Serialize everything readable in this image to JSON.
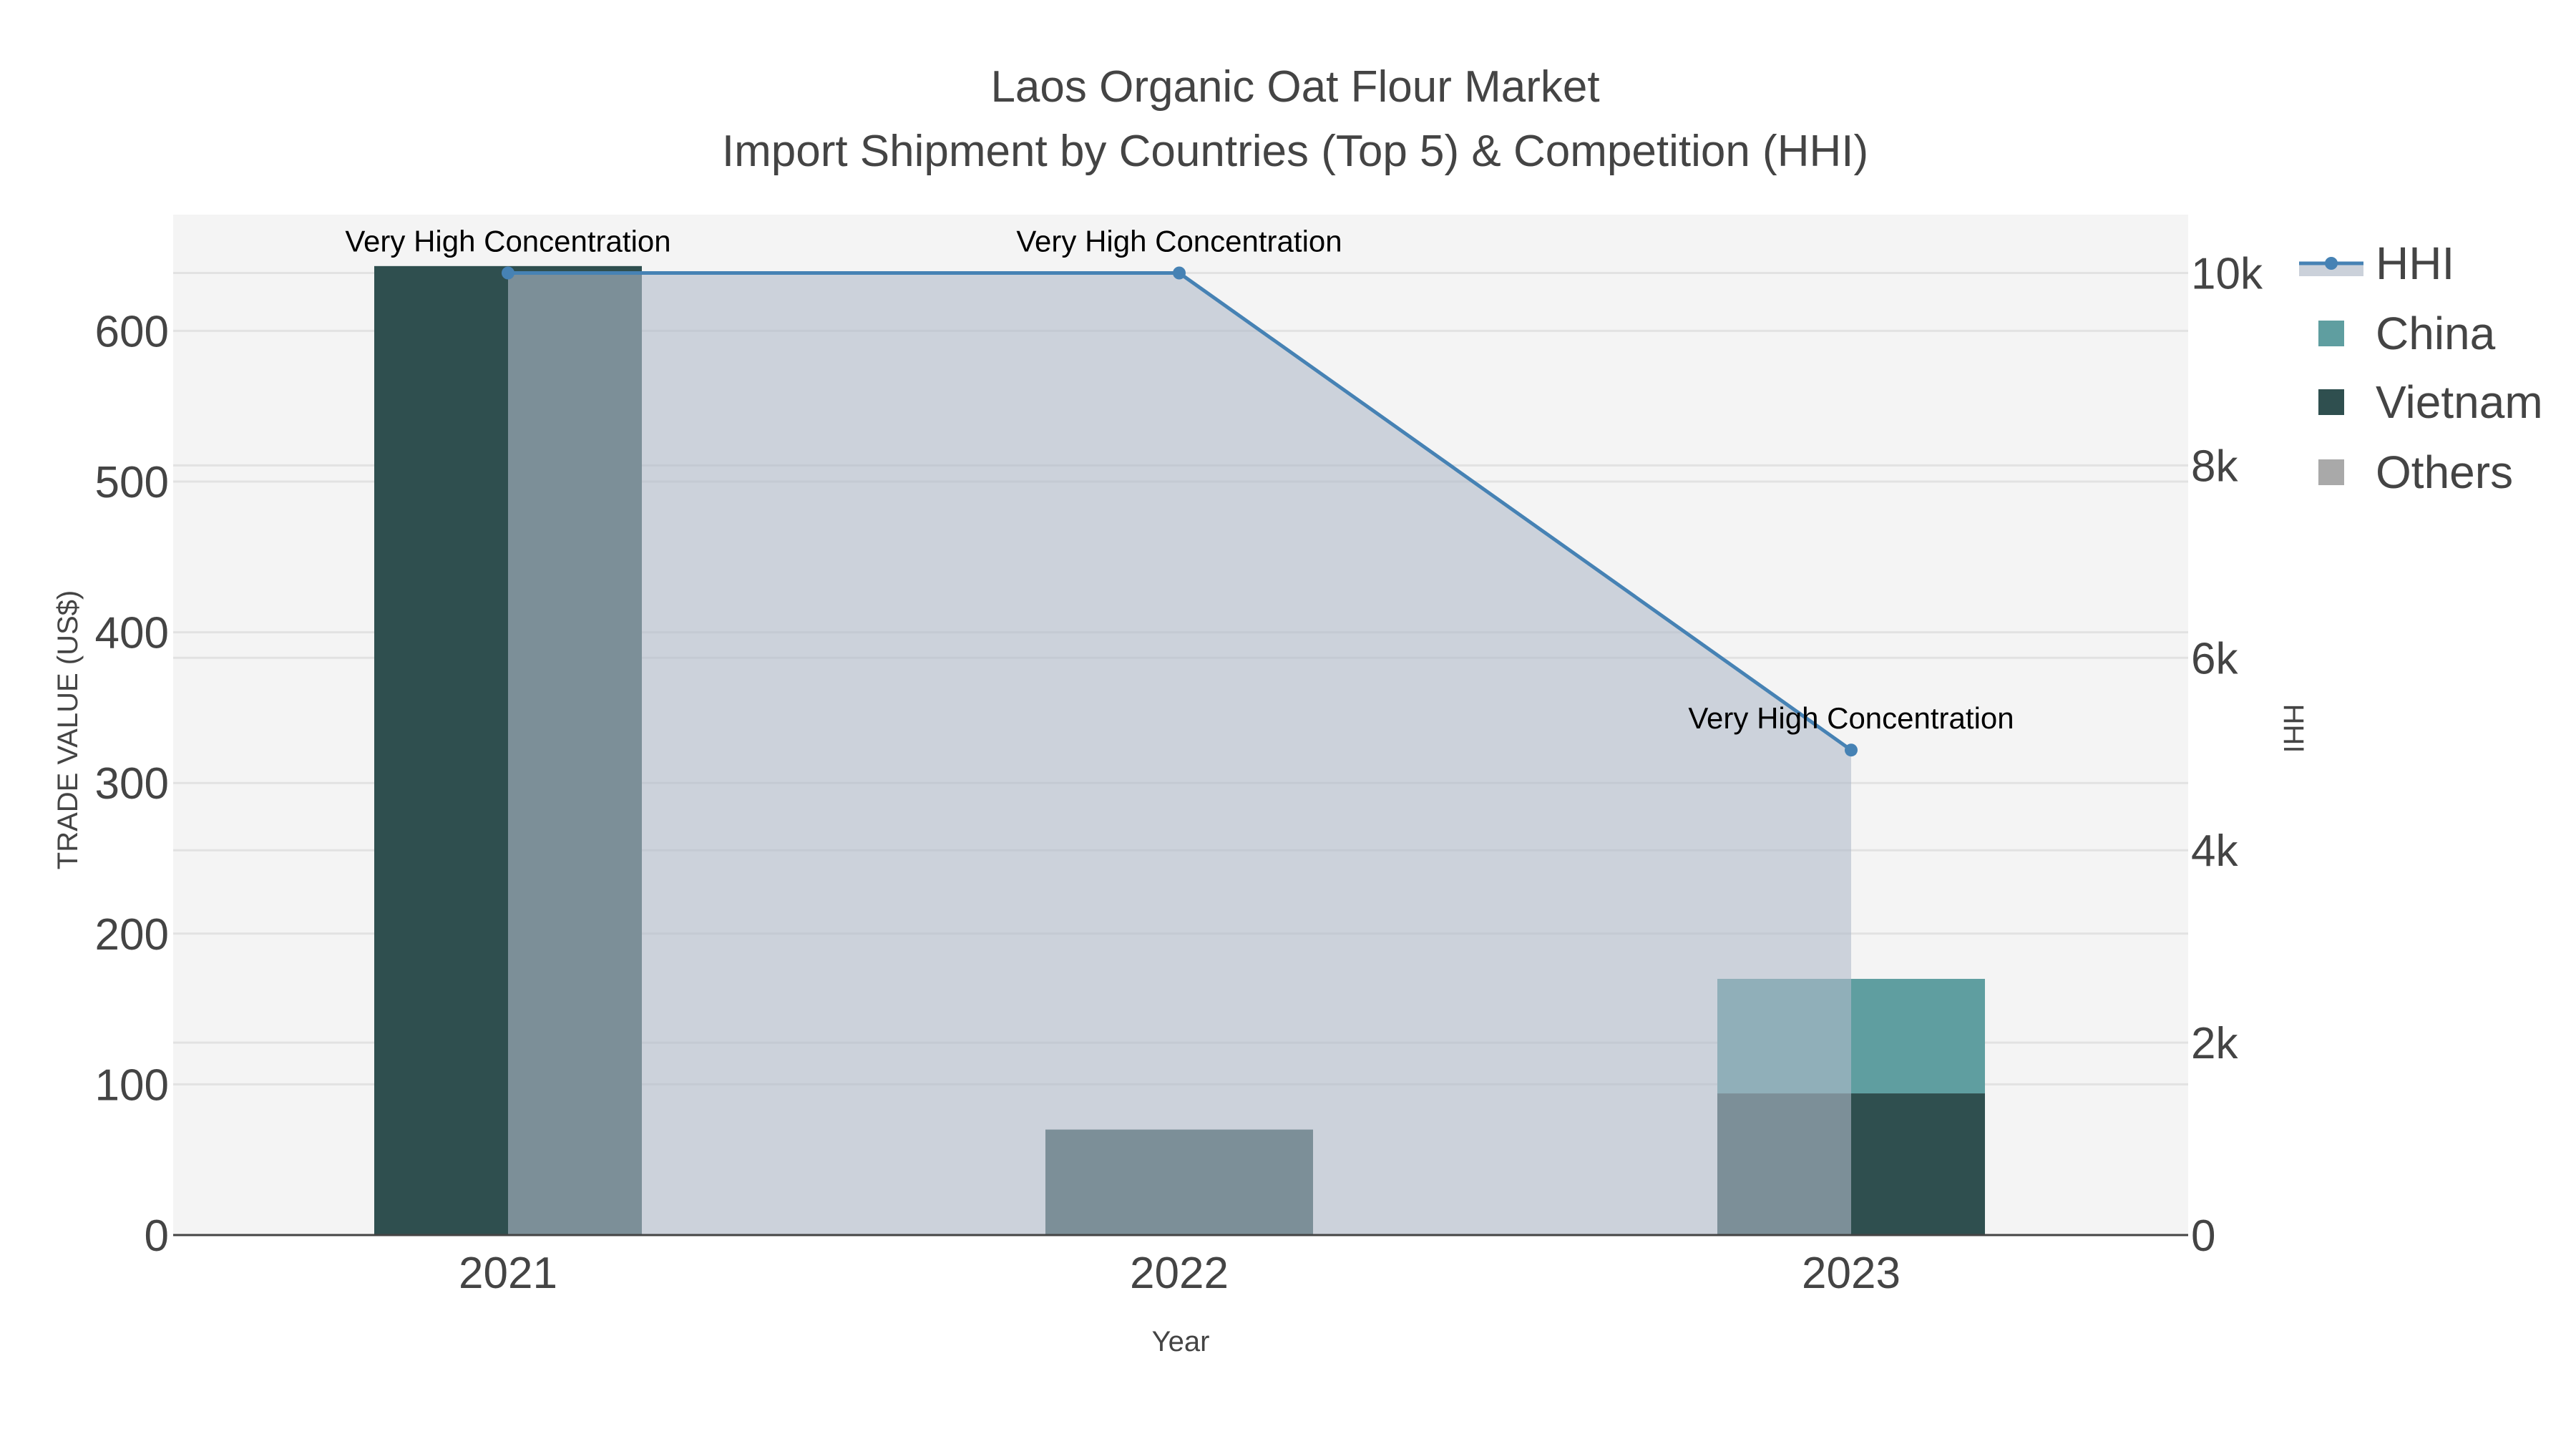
{
  "title": {
    "line1": "Laos Organic Oat Flour Market",
    "line2": "Import Shipment by Countries (Top 5) & Competition (HHI)"
  },
  "colors": {
    "plot_bg": "#f4f4f4",
    "grid": "#e2e2e2",
    "china": "#5f9ea0",
    "vietnam": "#2f4f4f",
    "others": "#a9a9a9",
    "hhi_line": "#4682b4",
    "hhi_fill": "rgba(176,186,201,0.6)",
    "axis_line": "#444444",
    "text": "#444444"
  },
  "legend": {
    "items": [
      {
        "name": "HHI",
        "type": "line"
      },
      {
        "name": "China",
        "type": "square",
        "color": "#5f9ea0"
      },
      {
        "name": "Vietnam",
        "type": "square",
        "color": "#2f4f4f"
      },
      {
        "name": "Others",
        "type": "square",
        "color": "#a9a9a9"
      }
    ]
  },
  "axes": {
    "x_title": "Year",
    "y_left_title": "TRADE VALUE (US$)",
    "y_right_title": "HHI",
    "x_ticks": [
      "2021",
      "2022",
      "2023"
    ],
    "y_left_ticks": [
      "0",
      "100",
      "200",
      "300",
      "400",
      "500",
      "600"
    ],
    "y_right_ticks": [
      "0",
      "2k",
      "4k",
      "6k",
      "8k",
      "10k"
    ]
  },
  "annotations": [
    {
      "year": "2021",
      "text": "Very High Concentration"
    },
    {
      "year": "2022",
      "text": "Very High Concentration"
    },
    {
      "year": "2023",
      "text": "Very High Concentration"
    }
  ],
  "chart_data": {
    "type": "bar",
    "title": "Laos Organic Oat Flour Market — Import Shipment by Countries (Top 5) & Competition (HHI)",
    "xlabel": "Year",
    "ylabel": "TRADE VALUE (US$)",
    "y2label": "HHI",
    "categories": [
      "2021",
      "2022",
      "2023"
    ],
    "barmode": "stack",
    "series": [
      {
        "name": "Vietnam",
        "type": "bar",
        "axis": "left",
        "color": "#2f4f4f",
        "values": [
          643,
          70,
          94
        ]
      },
      {
        "name": "China",
        "type": "bar",
        "axis": "left",
        "color": "#5f9ea0",
        "values": [
          0,
          0,
          76
        ]
      },
      {
        "name": "Others",
        "type": "bar",
        "axis": "left",
        "color": "#a9a9a9",
        "values": [
          0,
          0,
          0
        ]
      },
      {
        "name": "HHI",
        "type": "line",
        "axis": "right",
        "fill": "tozeroy",
        "color": "#4682b4",
        "values": [
          10000,
          10000,
          5041
        ]
      }
    ],
    "ylim": [
      0,
      665
    ],
    "y2lim": [
      0,
      10500
    ],
    "grid": true,
    "legend_position": "right",
    "annotations": [
      "Very High Concentration",
      "Very High Concentration",
      "Very High Concentration"
    ]
  }
}
